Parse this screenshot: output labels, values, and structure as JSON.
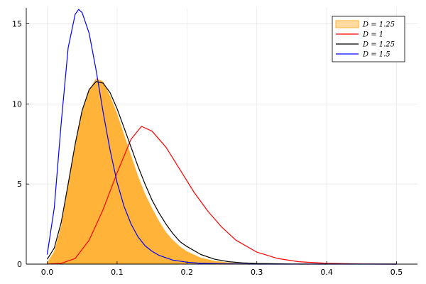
{
  "chart_data": {
    "type": "area",
    "title": "",
    "xlabel": "",
    "ylabel": "",
    "xlim": [
      -0.03,
      0.53
    ],
    "ylim": [
      0,
      16
    ],
    "grid": true,
    "legend_position": "top-right",
    "x_ticks": [
      {
        "value": 0.0,
        "label": "0.0"
      },
      {
        "value": 0.1,
        "label": "0.1"
      },
      {
        "value": 0.2,
        "label": "0.2"
      },
      {
        "value": 0.3,
        "label": "0.3"
      },
      {
        "value": 0.4,
        "label": "0.4"
      },
      {
        "value": 0.5,
        "label": "0.5"
      }
    ],
    "y_ticks": [
      {
        "value": 0,
        "label": "0"
      },
      {
        "value": 5,
        "label": "5"
      },
      {
        "value": 10,
        "label": "10"
      },
      {
        "value": 15,
        "label": "15"
      }
    ],
    "histogram": {
      "name": "D = 1.25",
      "color": "#ffb02e",
      "x": [
        0.0,
        0.01,
        0.02,
        0.03,
        0.04,
        0.05,
        0.06,
        0.07,
        0.08,
        0.09,
        0.1,
        0.11,
        0.12,
        0.13,
        0.14,
        0.15,
        0.16,
        0.17,
        0.18,
        0.19,
        0.2,
        0.22,
        0.24,
        0.26,
        0.28,
        0.3
      ],
      "y": [
        0.1,
        0.8,
        2.4,
        4.9,
        7.4,
        9.5,
        10.9,
        11.6,
        11.4,
        10.5,
        9.4,
        8.1,
        6.8,
        5.5,
        4.4,
        3.5,
        2.7,
        2.0,
        1.5,
        1.1,
        0.8,
        0.4,
        0.2,
        0.1,
        0.04,
        0.0
      ]
    },
    "series": [
      {
        "name": "D = 1",
        "color": "#ff0000",
        "x": [
          0.0,
          0.02,
          0.04,
          0.06,
          0.08,
          0.1,
          0.12,
          0.135,
          0.15,
          0.17,
          0.19,
          0.21,
          0.23,
          0.25,
          0.27,
          0.3,
          0.33,
          0.36,
          0.4,
          0.45,
          0.5
        ],
        "y": [
          0.0,
          0.05,
          0.35,
          1.5,
          3.4,
          5.7,
          7.8,
          8.6,
          8.3,
          7.3,
          5.9,
          4.5,
          3.3,
          2.3,
          1.5,
          0.75,
          0.35,
          0.15,
          0.05,
          0.01,
          0.0
        ]
      },
      {
        "name": "D = 1.25",
        "color": "#000000",
        "x": [
          0.0,
          0.01,
          0.02,
          0.03,
          0.04,
          0.05,
          0.06,
          0.07,
          0.08,
          0.09,
          0.1,
          0.11,
          0.12,
          0.13,
          0.14,
          0.15,
          0.16,
          0.17,
          0.18,
          0.19,
          0.2,
          0.22,
          0.24,
          0.26,
          0.28,
          0.3,
          0.35,
          0.5
        ],
        "y": [
          0.3,
          1.0,
          2.6,
          5.0,
          7.5,
          9.6,
          10.9,
          11.4,
          11.3,
          10.7,
          9.7,
          8.5,
          7.3,
          6.1,
          5.0,
          4.0,
          3.2,
          2.5,
          1.9,
          1.4,
          1.1,
          0.6,
          0.3,
          0.15,
          0.08,
          0.04,
          0.01,
          0.0
        ]
      },
      {
        "name": "D = 1.5",
        "color": "#0000ff",
        "x": [
          0.0,
          0.01,
          0.02,
          0.03,
          0.04,
          0.045,
          0.05,
          0.06,
          0.07,
          0.08,
          0.09,
          0.1,
          0.11,
          0.12,
          0.13,
          0.14,
          0.15,
          0.16,
          0.18,
          0.2,
          0.22,
          0.25,
          0.3,
          0.5
        ],
        "y": [
          0.6,
          3.5,
          8.8,
          13.5,
          15.6,
          15.9,
          15.7,
          14.4,
          12.1,
          9.5,
          7.1,
          5.1,
          3.6,
          2.5,
          1.7,
          1.15,
          0.8,
          0.55,
          0.25,
          0.12,
          0.05,
          0.02,
          0.0,
          0.0
        ]
      }
    ]
  }
}
